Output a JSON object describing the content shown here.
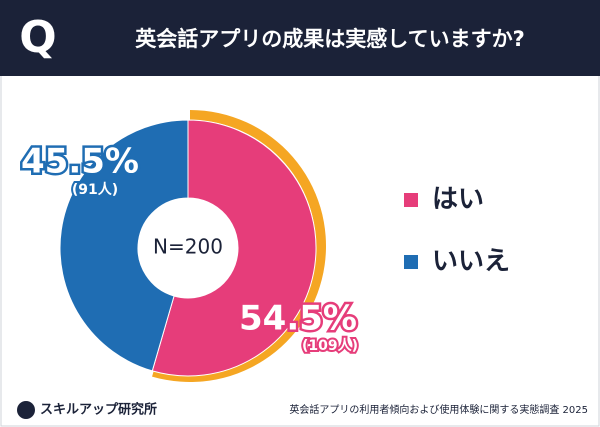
{
  "header": {
    "icon": "Q"
  },
  "chart_data": {
    "type": "donut",
    "title": "英会話アプリの成果は実感していますか?",
    "categories": [
      "はい",
      "いいえ"
    ],
    "values": [
      54.5,
      45.5
    ],
    "value_labels": [
      "54.5%",
      "45.5%"
    ],
    "count_labels": [
      "(109人)",
      "(91人)"
    ],
    "colors": [
      "#e63d7a",
      "#1f6db3"
    ],
    "highlight_color": "#f5a623",
    "center_label": "N=200",
    "legend": "right"
  },
  "footer": {
    "brand": "スキルアップ研究所",
    "source": "英会話アプリの利用者傾向および使用体験に関する実態調査 2025"
  }
}
